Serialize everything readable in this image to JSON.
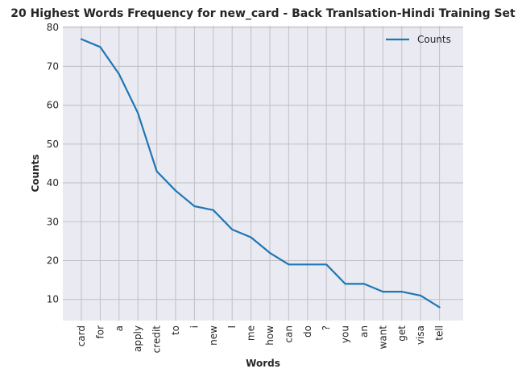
{
  "chart_data": {
    "type": "line",
    "title": "20 Highest Words Frequency for new_card - Back Tranlsation-Hindi Training Set",
    "xlabel": "Words",
    "ylabel": "Counts",
    "categories": [
      "card",
      "for",
      "a",
      "apply",
      "credit",
      "to",
      "i",
      "new",
      "I",
      "me",
      "how",
      "can",
      "do",
      "?",
      "you",
      "an",
      "want",
      "get",
      "visa",
      "tell"
    ],
    "series": [
      {
        "name": "Counts",
        "values": [
          77,
          75,
          68,
          58,
          43,
          38,
          34,
          33,
          28,
          26,
          22,
          19,
          19,
          19,
          14,
          14,
          12,
          12,
          11,
          8
        ],
        "color": "#1f77b4"
      }
    ],
    "ylim": [
      4.55,
      80.45
    ],
    "yticks": [
      10,
      20,
      30,
      40,
      50,
      60,
      70,
      80
    ],
    "grid": true,
    "legend_position": "top-right",
    "xtick_rotation": "vertical"
  }
}
